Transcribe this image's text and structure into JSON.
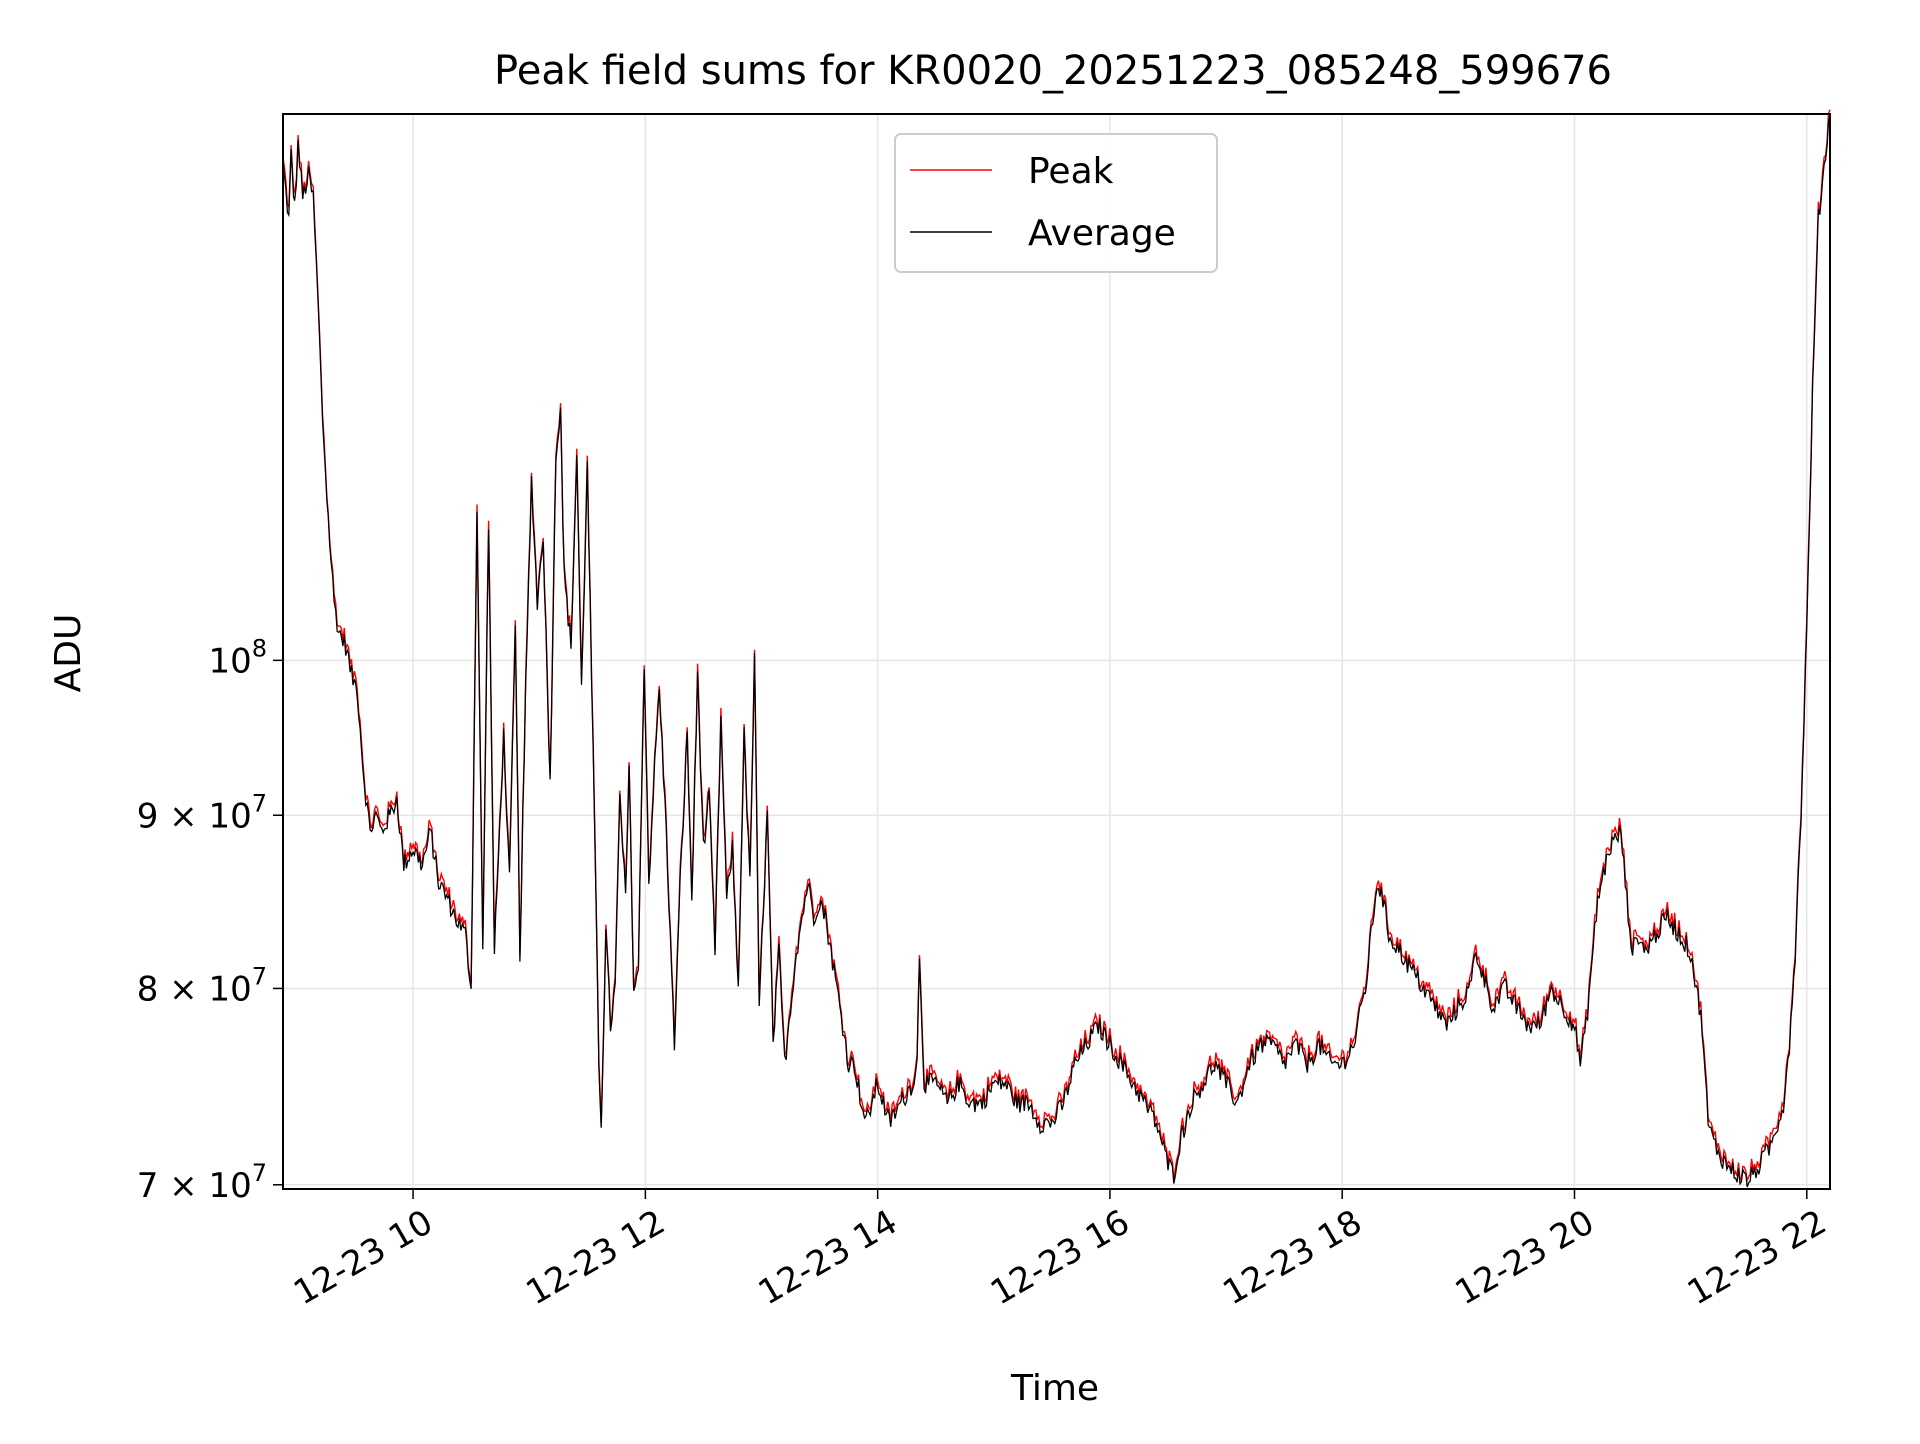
{
  "chart_data": {
    "type": "line",
    "title": "Peak field sums for KR0020_20251223_085248_599676",
    "xlabel": "Time",
    "ylabel": "ADU",
    "yscale": "log",
    "ylim": [
      69800000,
      145000000
    ],
    "xlim_hours": [
      8.88,
      22.2
    ],
    "grid": true,
    "legend_position": "upper center",
    "x_ticks": [
      {
        "hour": 10,
        "label": "12-23 10"
      },
      {
        "hour": 12,
        "label": "12-23 12"
      },
      {
        "hour": 14,
        "label": "12-23 14"
      },
      {
        "hour": 16,
        "label": "12-23 16"
      },
      {
        "hour": 18,
        "label": "12-23 18"
      },
      {
        "hour": 20,
        "label": "12-23 20"
      },
      {
        "hour": 22,
        "label": "12-23 22"
      }
    ],
    "y_ticks": [
      {
        "value": 70000000,
        "mant": "7",
        "sep": " × 10",
        "exp": "7"
      },
      {
        "value": 80000000,
        "mant": "8",
        "sep": " × 10",
        "exp": "7"
      },
      {
        "value": 90000000,
        "mant": "9",
        "sep": " × 10",
        "exp": "7"
      },
      {
        "value": 100000000,
        "mant": "",
        "sep": "10",
        "exp": "8"
      }
    ],
    "series_keypoints": [
      [
        8.88,
        140000000
      ],
      [
        8.93,
        135000000
      ],
      [
        8.95,
        141000000
      ],
      [
        8.98,
        136000000
      ],
      [
        9.01,
        142000000
      ],
      [
        9.05,
        137000000
      ],
      [
        9.1,
        139000000
      ],
      [
        9.14,
        137000000
      ],
      [
        9.18,
        128000000
      ],
      [
        9.22,
        118000000
      ],
      [
        9.27,
        110000000
      ],
      [
        9.32,
        104000000
      ],
      [
        9.36,
        102000000
      ],
      [
        9.42,
        101000000
      ],
      [
        9.47,
        99000000
      ],
      [
        9.52,
        98000000
      ],
      [
        9.58,
        92000000
      ],
      [
        9.63,
        89000000
      ],
      [
        9.68,
        90000000
      ],
      [
        9.73,
        89000000
      ],
      [
        9.8,
        90000000
      ],
      [
        9.86,
        91000000
      ],
      [
        9.92,
        87000000
      ],
      [
        10.0,
        88000000
      ],
      [
        10.08,
        87000000
      ],
      [
        10.15,
        89000000
      ],
      [
        10.22,
        86000000
      ],
      [
        10.3,
        85000000
      ],
      [
        10.36,
        84000000
      ],
      [
        10.45,
        83000000
      ],
      [
        10.5,
        80000000
      ],
      [
        10.55,
        111000000
      ],
      [
        10.6,
        82000000
      ],
      [
        10.65,
        110000000
      ],
      [
        10.7,
        82000000
      ],
      [
        10.78,
        95000000
      ],
      [
        10.83,
        86000000
      ],
      [
        10.88,
        102000000
      ],
      [
        10.92,
        82000000
      ],
      [
        10.97,
        98000000
      ],
      [
        11.02,
        113000000
      ],
      [
        11.07,
        104000000
      ],
      [
        11.12,
        109000000
      ],
      [
        11.18,
        92000000
      ],
      [
        11.23,
        115000000
      ],
      [
        11.27,
        119000000
      ],
      [
        11.3,
        106000000
      ],
      [
        11.36,
        101000000
      ],
      [
        11.41,
        115000000
      ],
      [
        11.45,
        98000000
      ],
      [
        11.5,
        114000000
      ],
      [
        11.55,
        94000000
      ],
      [
        11.6,
        76000000
      ],
      [
        11.62,
        73000000
      ],
      [
        11.66,
        83000000
      ],
      [
        11.7,
        78000000
      ],
      [
        11.74,
        80000000
      ],
      [
        11.78,
        91000000
      ],
      [
        11.83,
        85000000
      ],
      [
        11.86,
        93000000
      ],
      [
        11.9,
        80000000
      ],
      [
        11.94,
        81000000
      ],
      [
        11.99,
        100000000
      ],
      [
        12.03,
        86000000
      ],
      [
        12.08,
        93000000
      ],
      [
        12.12,
        98000000
      ],
      [
        12.18,
        89000000
      ],
      [
        12.25,
        77000000
      ],
      [
        12.3,
        86000000
      ],
      [
        12.36,
        95000000
      ],
      [
        12.4,
        85000000
      ],
      [
        12.45,
        99000000
      ],
      [
        12.5,
        88000000
      ],
      [
        12.55,
        91000000
      ],
      [
        12.6,
        82000000
      ],
      [
        12.65,
        96000000
      ],
      [
        12.7,
        85000000
      ],
      [
        12.75,
        88000000
      ],
      [
        12.8,
        80000000
      ],
      [
        12.85,
        95000000
      ],
      [
        12.9,
        86000000
      ],
      [
        12.94,
        100000000
      ],
      [
        12.98,
        79000000
      ],
      [
        13.05,
        90000000
      ],
      [
        13.1,
        77000000
      ],
      [
        13.15,
        82000000
      ],
      [
        13.2,
        76000000
      ],
      [
        13.25,
        79000000
      ],
      [
        13.3,
        82000000
      ],
      [
        13.35,
        84000000
      ],
      [
        13.4,
        86000000
      ],
      [
        13.45,
        84000000
      ],
      [
        13.5,
        85000000
      ],
      [
        13.55,
        84000000
      ],
      [
        13.6,
        82000000
      ],
      [
        13.65,
        80000000
      ],
      [
        13.7,
        78000000
      ],
      [
        13.75,
        76000000
      ],
      [
        13.8,
        76000000
      ],
      [
        13.86,
        74000000
      ],
      [
        13.9,
        73000000
      ],
      [
        13.95,
        74000000
      ],
      [
        14.0,
        75000000
      ],
      [
        14.1,
        73000000
      ],
      [
        14.2,
        74000000
      ],
      [
        14.3,
        75000000
      ],
      [
        14.34,
        76000000
      ],
      [
        14.36,
        82000000
      ],
      [
        14.4,
        75000000
      ],
      [
        14.5,
        75000000
      ],
      [
        14.6,
        74000000
      ],
      [
        14.7,
        75000000
      ],
      [
        14.8,
        74000000
      ],
      [
        14.9,
        74000000
      ],
      [
        15.0,
        75000000
      ],
      [
        15.1,
        75000000
      ],
      [
        15.2,
        74000000
      ],
      [
        15.3,
        74000000
      ],
      [
        15.4,
        73000000
      ],
      [
        15.5,
        73000000
      ],
      [
        15.6,
        74000000
      ],
      [
        15.7,
        76000000
      ],
      [
        15.8,
        77000000
      ],
      [
        15.9,
        78000000
      ],
      [
        16.0,
        77000000
      ],
      [
        16.1,
        76000000
      ],
      [
        16.2,
        75000000
      ],
      [
        16.3,
        74000000
      ],
      [
        16.4,
        73000000
      ],
      [
        16.5,
        71000000
      ],
      [
        16.55,
        70500000
      ],
      [
        16.6,
        72000000
      ],
      [
        16.7,
        74000000
      ],
      [
        16.8,
        75000000
      ],
      [
        16.9,
        76000000
      ],
      [
        17.0,
        75000000
      ],
      [
        17.1,
        74000000
      ],
      [
        17.2,
        76000000
      ],
      [
        17.3,
        77000000
      ],
      [
        17.4,
        77000000
      ],
      [
        17.5,
        76000000
      ],
      [
        17.6,
        77000000
      ],
      [
        17.7,
        76000000
      ],
      [
        17.8,
        77000000
      ],
      [
        17.9,
        76000000
      ],
      [
        18.0,
        76000000
      ],
      [
        18.1,
        77000000
      ],
      [
        18.2,
        80000000
      ],
      [
        18.3,
        86000000
      ],
      [
        18.35,
        85000000
      ],
      [
        18.4,
        83000000
      ],
      [
        18.5,
        82000000
      ],
      [
        18.6,
        81000000
      ],
      [
        18.7,
        80000000
      ],
      [
        18.8,
        79000000
      ],
      [
        18.9,
        78000000
      ],
      [
        19.0,
        79000000
      ],
      [
        19.1,
        80000000
      ],
      [
        19.15,
        82000000
      ],
      [
        19.2,
        81000000
      ],
      [
        19.3,
        79000000
      ],
      [
        19.4,
        80000000
      ],
      [
        19.5,
        79000000
      ],
      [
        19.6,
        78000000
      ],
      [
        19.7,
        78000000
      ],
      [
        19.8,
        80000000
      ],
      [
        19.9,
        79000000
      ],
      [
        20.0,
        78000000
      ],
      [
        20.05,
        76000000
      ],
      [
        20.1,
        78000000
      ],
      [
        20.2,
        85000000
      ],
      [
        20.3,
        88000000
      ],
      [
        20.4,
        89000000
      ],
      [
        20.45,
        85000000
      ],
      [
        20.5,
        82000000
      ],
      [
        20.55,
        83000000
      ],
      [
        20.6,
        82000000
      ],
      [
        20.7,
        83000000
      ],
      [
        20.8,
        84000000
      ],
      [
        20.9,
        83000000
      ],
      [
        21.0,
        82000000
      ],
      [
        21.1,
        78000000
      ],
      [
        21.15,
        73000000
      ],
      [
        21.2,
        72000000
      ],
      [
        21.3,
        71000000
      ],
      [
        21.4,
        70500000
      ],
      [
        21.5,
        70200000
      ],
      [
        21.6,
        71000000
      ],
      [
        21.7,
        72000000
      ],
      [
        21.8,
        74000000
      ],
      [
        21.85,
        77000000
      ],
      [
        21.9,
        82000000
      ],
      [
        21.95,
        90000000
      ],
      [
        22.0,
        102000000
      ],
      [
        22.05,
        120000000
      ],
      [
        22.1,
        135000000
      ],
      [
        22.15,
        140000000
      ],
      [
        22.2,
        145000000
      ]
    ],
    "series": [
      {
        "name": "Peak",
        "color": "#ff0000"
      },
      {
        "name": "Average",
        "color": "#000000"
      }
    ]
  }
}
